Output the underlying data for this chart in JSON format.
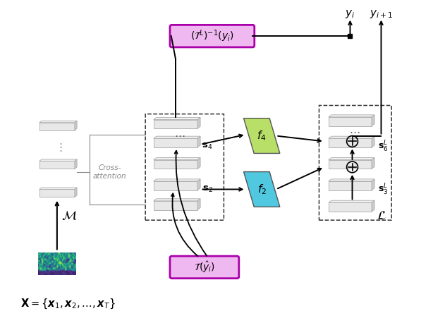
{
  "fig_width": 6.14,
  "fig_height": 4.58,
  "dpi": 100,
  "bg_color": "#ffffff",
  "purple_facecolor": "#f0b8f0",
  "purple_edgecolor": "#aa00aa",
  "green_color": "#b8e068",
  "cyan_color": "#50c8e0",
  "layer_face": "#e8e8e8",
  "layer_edge": "#aaaaaa",
  "layer_top": "#f2f2f2",
  "layer_side": "#cccccc",
  "dash_color": "#333333",
  "arrow_color": "#000000",
  "gray_color": "#888888",
  "dot_color": "#555555"
}
